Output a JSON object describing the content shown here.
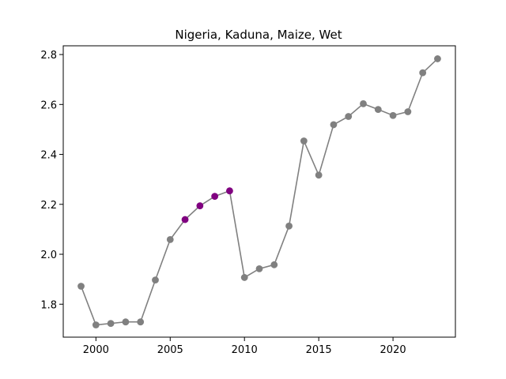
{
  "chart_data": {
    "type": "line",
    "title": "Nigeria, Kaduna, Maize, Wet",
    "xlabel": "",
    "ylabel": "",
    "xlim": [
      1997.8,
      2024.2
    ],
    "ylim": [
      1.668,
      2.835
    ],
    "xticks": [
      2000,
      2005,
      2010,
      2015,
      2020
    ],
    "yticks": [
      1.8,
      2.0,
      2.2,
      2.4,
      2.6,
      2.8
    ],
    "grid": false,
    "series": [
      {
        "line_color": "#808080",
        "x": [
          1999,
          2000,
          2001,
          2002,
          2003,
          2004,
          2005,
          2006,
          2007,
          2008,
          2009,
          2010,
          2011,
          2012,
          2013,
          2014,
          2015,
          2016,
          2017,
          2018,
          2019,
          2020,
          2021,
          2022,
          2023
        ],
        "y": [
          1.872,
          1.717,
          1.723,
          1.729,
          1.729,
          1.897,
          2.059,
          2.139,
          2.194,
          2.232,
          2.254,
          1.907,
          1.942,
          1.958,
          2.113,
          2.454,
          2.317,
          2.519,
          2.552,
          2.603,
          2.58,
          2.556,
          2.571,
          2.727,
          2.783
        ]
      }
    ],
    "highlight": {
      "color": "#800080",
      "x": [
        2006,
        2007,
        2008,
        2009
      ]
    },
    "marker_color": "#808080"
  }
}
